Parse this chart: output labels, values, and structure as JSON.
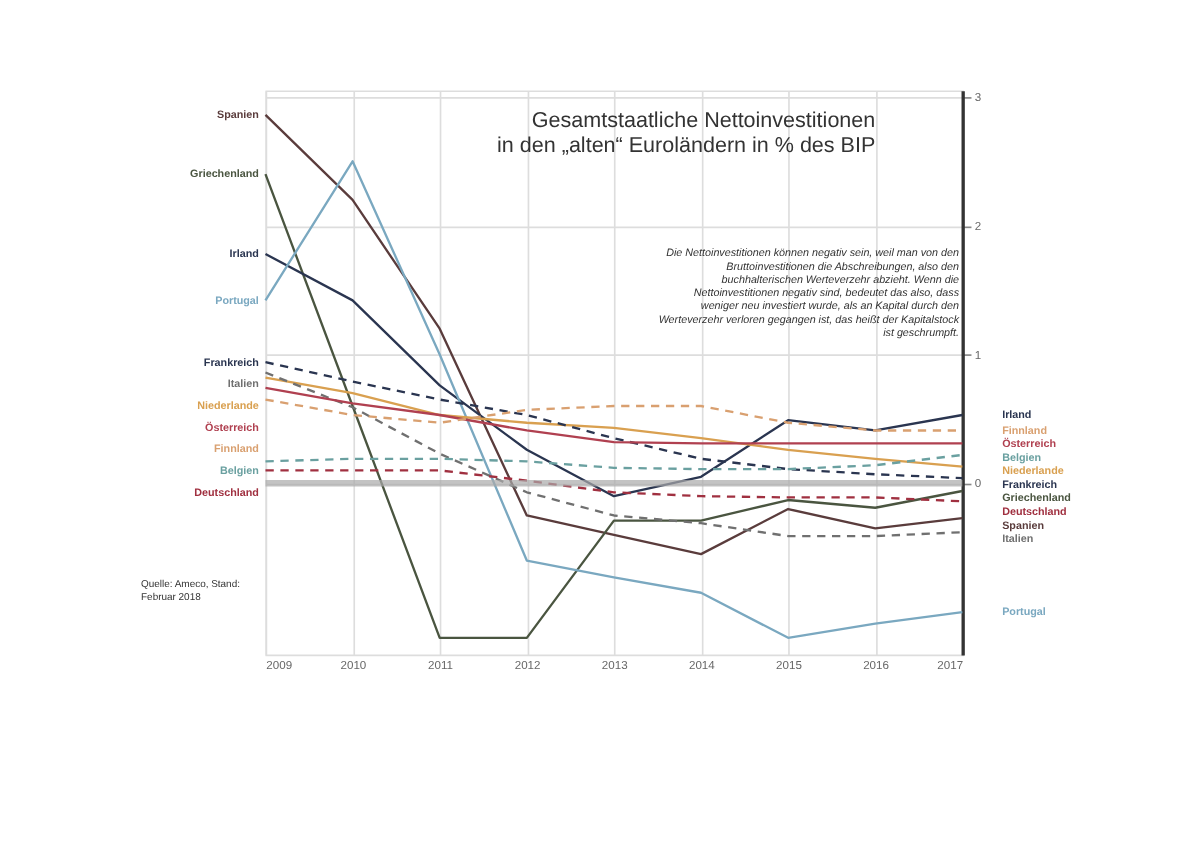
{
  "chart_data": {
    "type": "line",
    "title": "Gesamtstaatliche Nettoinvestitionen\nin den „alten“ Euroländern in % des BIP",
    "x": [
      2009,
      2010,
      2011,
      2012,
      2013,
      2014,
      2015,
      2016,
      2017
    ],
    "xlim": [
      2009,
      2017
    ],
    "xticks": [
      2009,
      2010,
      2011,
      2012,
      2013,
      2014,
      2015,
      2016,
      2017
    ],
    "ylim": [
      -1.33,
      3.05
    ],
    "yticks": [
      0,
      1,
      2,
      3
    ],
    "grid": true,
    "legend": false,
    "marker": "none",
    "series": [
      {
        "name": "Spanien",
        "color": "#5a3c3c",
        "line_style": "solid",
        "values": [
          2.86,
          2.2,
          1.2,
          -0.25,
          -0.4,
          -0.55,
          -0.2,
          -0.35,
          -0.27
        ]
      },
      {
        "name": "Griechenland",
        "color": "#4a5540",
        "line_style": "solid",
        "values": [
          2.4,
          0.6,
          -1.2,
          -1.2,
          -0.29,
          -0.29,
          -0.13,
          -0.19,
          -0.06
        ]
      },
      {
        "name": "Irland",
        "color": "#2a3550",
        "line_style": "solid",
        "values": [
          1.78,
          1.42,
          0.76,
          0.26,
          -0.1,
          0.05,
          0.49,
          0.41,
          0.53
        ]
      },
      {
        "name": "Portugal",
        "color": "#7aa8c0",
        "line_style": "solid",
        "values": [
          1.42,
          2.5,
          1.0,
          -0.6,
          -0.73,
          -0.85,
          -1.2,
          -1.09,
          -1.0
        ]
      },
      {
        "name": "Niederlande",
        "color": "#d9a050",
        "line_style": "solid",
        "values": [
          0.82,
          0.7,
          0.53,
          0.47,
          0.43,
          0.35,
          0.26,
          0.19,
          0.13
        ]
      },
      {
        "name": "Frankreich",
        "color": "#2a3550",
        "line_style": "dashed",
        "values": [
          0.94,
          0.79,
          0.65,
          0.53,
          0.35,
          0.19,
          0.11,
          0.07,
          0.04
        ]
      },
      {
        "name": "Italien",
        "color": "#707070",
        "line_style": "dashed",
        "values": [
          0.86,
          0.59,
          0.23,
          -0.07,
          -0.25,
          -0.31,
          -0.41,
          -0.41,
          -0.38
        ]
      },
      {
        "name": "Österreich",
        "color": "#b04050",
        "line_style": "solid",
        "values": [
          0.74,
          0.62,
          0.53,
          0.41,
          0.32,
          0.31,
          0.31,
          0.31,
          0.31
        ]
      },
      {
        "name": "Finnland",
        "color": "#d9a070",
        "line_style": "dashed",
        "values": [
          0.65,
          0.53,
          0.47,
          0.57,
          0.6,
          0.6,
          0.47,
          0.41,
          0.41
        ]
      },
      {
        "name": "Belgien",
        "color": "#6aa0a0",
        "line_style": "dashed",
        "values": [
          0.17,
          0.19,
          0.19,
          0.17,
          0.12,
          0.11,
          0.11,
          0.14,
          0.22
        ]
      },
      {
        "name": "Deutschland",
        "color": "#a03040",
        "line_style": "dashed",
        "values": [
          0.1,
          0.1,
          0.1,
          0.02,
          -0.07,
          -0.1,
          -0.11,
          -0.11,
          -0.14
        ]
      }
    ],
    "ref_lines": [
      {
        "axis": "y",
        "value": 0,
        "color": "#aaaaaa"
      }
    ],
    "annotations": [
      "Die Nettoinvestitionen können negativ sein, weil man von den Bruttoinvestitionen die Abschreibungen, also den buchhalterischen Werteverzehr abzieht. Wenn die Nettoinvestitionen negativ sind, bedeutet das also, dass weniger neu investiert wurde, als an Kapital durch den Werteverzehr verloren gegangen ist, das heißt der Kapitalstock ist geschrumpft.",
      "Quelle: Ameco, Stand: Februar 2018"
    ]
  }
}
